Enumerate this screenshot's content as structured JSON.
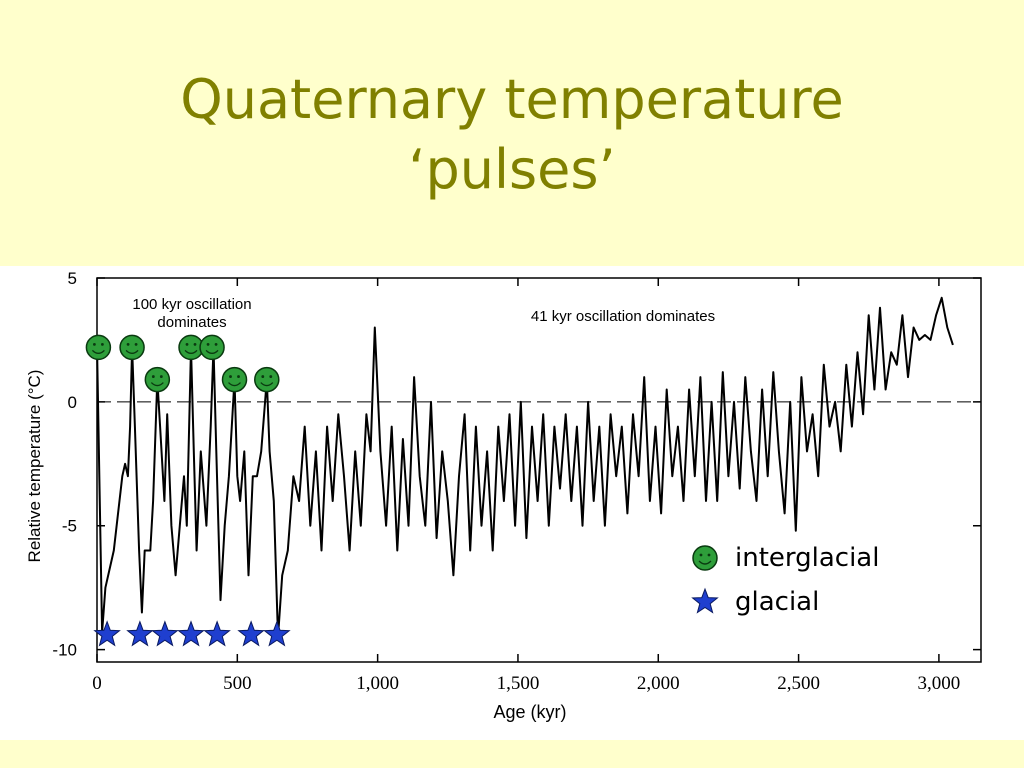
{
  "title": [
    "Quaternary temperature",
    "‘pulses’"
  ],
  "chart_data": {
    "type": "line",
    "xlabel": "Age (kyr)",
    "ylabel": "Relative temperature (°C)",
    "xlim": [
      0,
      3150
    ],
    "ylim": [
      -10.5,
      5
    ],
    "xticks": [
      0,
      500,
      {
        "value": 1000,
        "label": "1,000"
      },
      {
        "value": 1500,
        "label": "1,500"
      },
      {
        "value": 2000,
        "label": "2,000"
      },
      {
        "value": 2500,
        "label": "2,500"
      },
      {
        "value": 3000,
        "label": "3,000"
      }
    ],
    "yticks": [
      5,
      0,
      -5,
      -10
    ],
    "reference_line": 0,
    "annotations": [
      "100 kyr oscillation",
      "dominates",
      "41 kyr oscillation dominates"
    ],
    "x": [
      0,
      18,
      30,
      60,
      90,
      100,
      110,
      118,
      125,
      135,
      150,
      160,
      170,
      190,
      200,
      215,
      225,
      240,
      250,
      265,
      280,
      295,
      310,
      320,
      335,
      345,
      355,
      370,
      390,
      405,
      415,
      425,
      440,
      455,
      470,
      490,
      500,
      510,
      525,
      540,
      555,
      570,
      585,
      605,
      615,
      630,
      645,
      660,
      680,
      700,
      720,
      740,
      760,
      780,
      800,
      820,
      840,
      860,
      880,
      900,
      920,
      940,
      960,
      975,
      990,
      1010,
      1030,
      1050,
      1070,
      1090,
      1110,
      1130,
      1150,
      1170,
      1190,
      1210,
      1230,
      1250,
      1270,
      1290,
      1310,
      1330,
      1350,
      1370,
      1390,
      1410,
      1430,
      1450,
      1470,
      1490,
      1510,
      1530,
      1550,
      1570,
      1590,
      1610,
      1630,
      1650,
      1670,
      1690,
      1710,
      1730,
      1750,
      1770,
      1790,
      1810,
      1830,
      1850,
      1870,
      1890,
      1910,
      1930,
      1950,
      1970,
      1990,
      2010,
      2030,
      2050,
      2070,
      2090,
      2110,
      2130,
      2150,
      2170,
      2190,
      2210,
      2230,
      2250,
      2270,
      2290,
      2310,
      2330,
      2350,
      2370,
      2390,
      2410,
      2430,
      2450,
      2470,
      2490,
      2510,
      2530,
      2550,
      2570,
      2590,
      2610,
      2630,
      2650,
      2670,
      2690,
      2710,
      2730,
      2750,
      2770,
      2790,
      2810,
      2830,
      2850,
      2870,
      2890,
      2910,
      2930,
      2950,
      2970,
      2990,
      3010,
      3030,
      3050
    ],
    "series": [
      {
        "color": "#000000",
        "values": [
          2.3,
          -9.3,
          -7.5,
          -6,
          -3,
          -2.5,
          -3,
          -1,
          2.2,
          -1,
          -6,
          -8.5,
          -6,
          -6,
          -4,
          0.9,
          -1,
          -4,
          -0.5,
          -5,
          -7,
          -5,
          -3,
          -5,
          2.2,
          -2,
          -6,
          -2,
          -5,
          -1,
          2.2,
          -2,
          -8,
          -5,
          -3,
          0.9,
          -3,
          -4,
          -2,
          -7,
          -3,
          -3,
          -2,
          0.9,
          -2,
          -4,
          -9.5,
          -7,
          -6,
          -3,
          -4,
          -1,
          -5,
          -2,
          -6,
          -1,
          -4,
          -0.5,
          -3,
          -6,
          -2,
          -5,
          -0.5,
          -2,
          3,
          -2,
          -5,
          -1,
          -6,
          -1.5,
          -5,
          1,
          -3,
          -5,
          0,
          -5.5,
          -2,
          -4,
          -7,
          -3,
          -0.5,
          -6,
          -1,
          -5,
          -2,
          -6,
          -1,
          -4,
          -0.5,
          -5,
          0,
          -5.5,
          -1,
          -4,
          -0.5,
          -5,
          -1,
          -3.5,
          -0.5,
          -4,
          -1,
          -5,
          0,
          -4,
          -1,
          -5,
          -0.5,
          -3,
          -1,
          -4.5,
          -0.5,
          -3,
          1,
          -4,
          -1,
          -4.5,
          0.5,
          -3,
          -1,
          -4,
          0.5,
          -3,
          1,
          -4,
          0,
          -4,
          1.2,
          -3,
          0,
          -3.5,
          1,
          -2,
          -4,
          0.5,
          -3,
          1.2,
          -2,
          -4.5,
          0,
          -5.2,
          1,
          -2,
          -0.5,
          -3,
          1.5,
          -1,
          0,
          -2,
          1.5,
          -1,
          2,
          -0.5,
          3.5,
          0.5,
          3.8,
          0.5,
          2,
          1.5,
          3.5,
          1,
          3,
          2.5,
          2.7,
          2.5,
          3.5,
          4.2,
          3,
          2.3
        ]
      }
    ],
    "markers": [
      {
        "name": "interglacial",
        "color": "#2e9e3a",
        "x": [
          5,
          125,
          215,
          335,
          410,
          490,
          605
        ],
        "y": [
          2.2,
          2.2,
          0.9,
          2.2,
          2.2,
          0.9,
          0.9
        ]
      },
      {
        "name": "glacial",
        "color": "#1f3fcf",
        "x": [
          36,
          153,
          242,
          335,
          428,
          549,
          641
        ],
        "y": [
          -9.4,
          -9.4,
          -9.4,
          -9.4,
          -9.4,
          -9.4,
          -9.4
        ]
      }
    ]
  }
}
